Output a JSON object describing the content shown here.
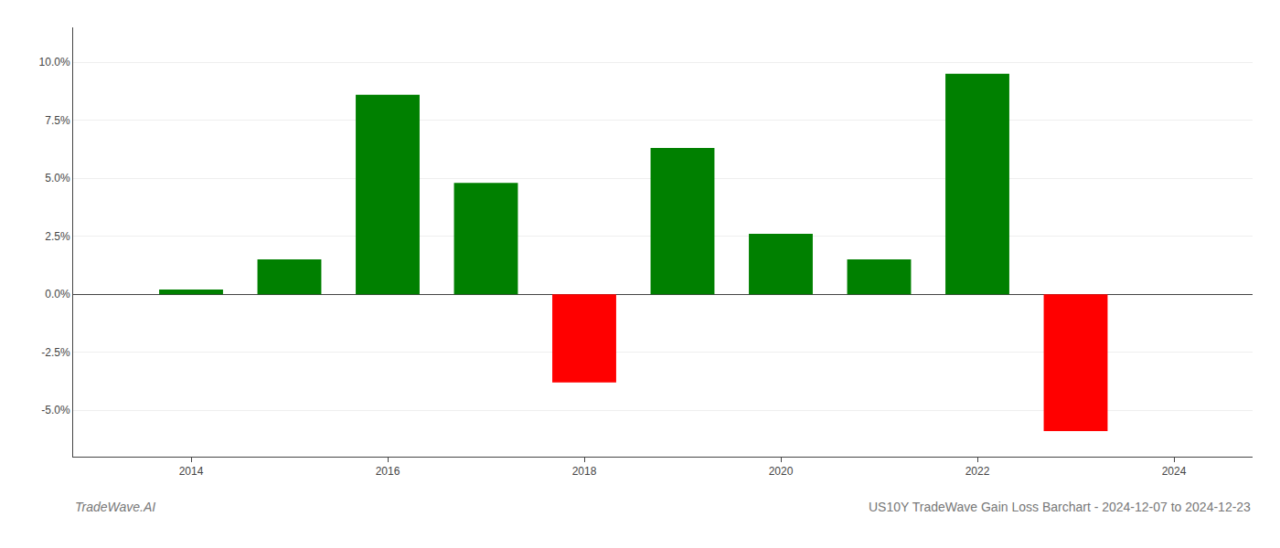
{
  "chart_data": {
    "type": "bar",
    "title": "US10Y TradeWave Gain Loss Barchart - 2024-12-07 to 2024-12-23",
    "annotations": [
      "TradeWave.AI"
    ],
    "x": [
      2014,
      2015,
      2016,
      2017,
      2018,
      2019,
      2020,
      2021,
      2022,
      2023
    ],
    "values": [
      0.2,
      1.5,
      8.6,
      4.8,
      -3.8,
      6.3,
      2.6,
      1.5,
      9.5,
      -5.9
    ],
    "colors": [
      "#008000",
      "#008000",
      "#008000",
      "#008000",
      "#ff0000",
      "#008000",
      "#008000",
      "#008000",
      "#008000",
      "#ff0000"
    ],
    "xlim": [
      2012.8,
      2024.8
    ],
    "xticks": [
      2014,
      2016,
      2018,
      2020,
      2022,
      2024
    ],
    "ylim": [
      -7.0,
      11.5
    ],
    "yticks": [
      {
        "value": -5.0,
        "label": "-5.0%"
      },
      {
        "value": -2.5,
        "label": "-2.5%"
      },
      {
        "value": 0.0,
        "label": "0.0%"
      },
      {
        "value": 2.5,
        "label": "2.5%"
      },
      {
        "value": 5.0,
        "label": "5.0%"
      },
      {
        "value": 7.5,
        "label": "7.5%"
      },
      {
        "value": 10.0,
        "label": "10.0%"
      }
    ],
    "grid": "y"
  }
}
